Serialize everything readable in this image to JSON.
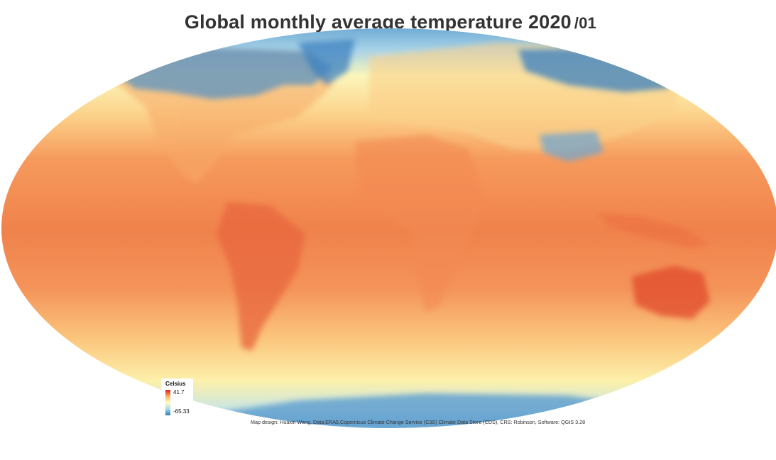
{
  "map": {
    "title": "Global monthly average temperature 2020",
    "title_month": "/01",
    "legend": {
      "title": "Celsius",
      "max_label": "41.7",
      "min_label": "-65.33",
      "max_value": 41.7,
      "min_value": -65.33,
      "colors": {
        "hot": "#d7191c",
        "warm": "#fdae61",
        "mid": "#ffffbf",
        "cool": "#abd9e9",
        "cold": "#2c7bb6"
      }
    },
    "credit": "Map design: Huaxin Wang, Data:ERA5,Copernicus Climate Change Service (C3S) Climate Data Store (CDS), CRS: Robinson, Software: QGIS 3.28"
  }
}
